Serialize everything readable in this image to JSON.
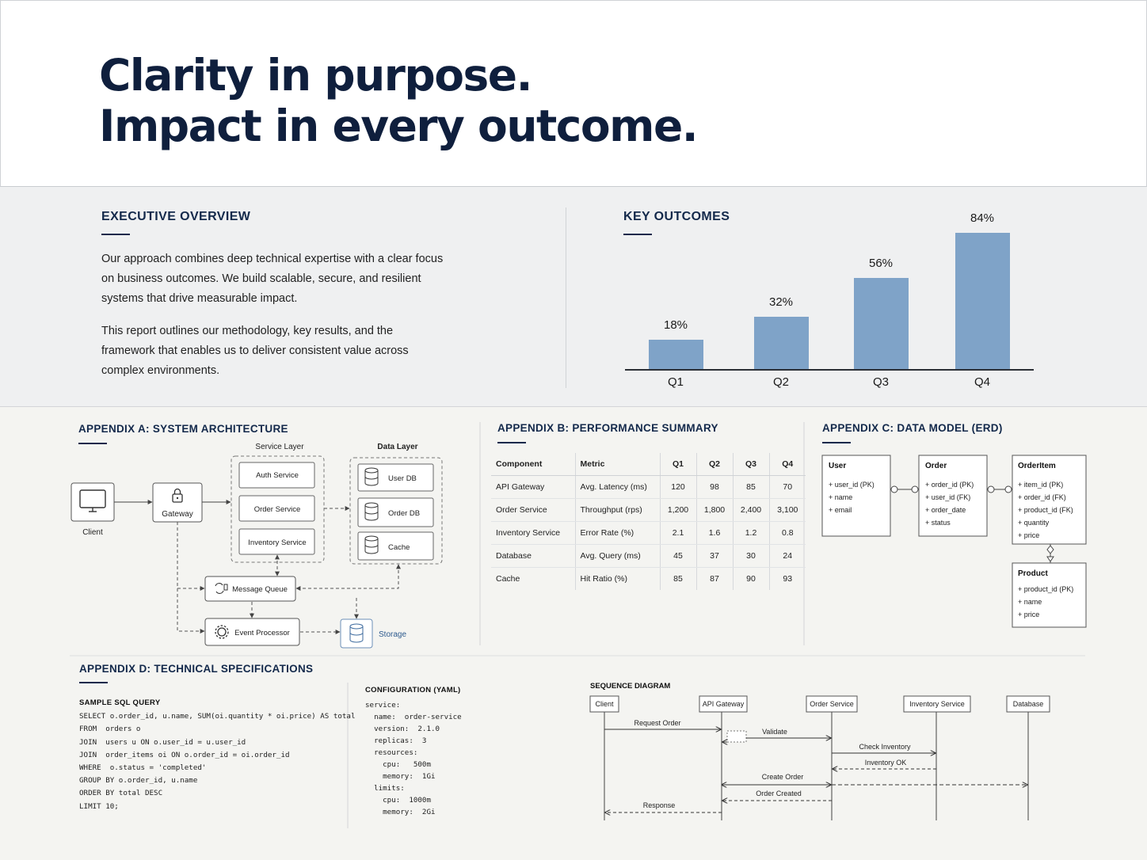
{
  "hero": {
    "line1": "Clarity in purpose.",
    "line2": "Impact in every outcome."
  },
  "overview": {
    "title": "EXECUTIVE OVERVIEW",
    "para1_lines": [
      "Our approach combines deep technical expertise with a clear focus",
      "on business outcomes. We build scalable, secure, and resilient",
      "systems that drive measurable impact."
    ],
    "para2_lines": [
      "This report outlines our methodology, key results, and the",
      "framework that enables us to deliver consistent value across",
      "complex environments."
    ]
  },
  "outcomes": {
    "title": "KEY OUTCOMES"
  },
  "chart_data": {
    "type": "bar",
    "title": "KEY OUTCOMES",
    "categories": [
      "Q1",
      "Q2",
      "Q3",
      "Q4"
    ],
    "values": [
      18,
      32,
      56,
      84
    ],
    "value_labels": [
      "18%",
      "32%",
      "56%",
      "84%"
    ],
    "ylim": [
      0,
      84
    ],
    "grid": false,
    "bar_color": "#7fa3c8"
  },
  "appendix_a": {
    "title": "APPENDIX A: SYSTEM ARCHITECTURE",
    "service_layer": "Service Layer",
    "data_layer": "Data Layer",
    "client": "Client",
    "gateway": "Gateway",
    "services": [
      "Auth Service",
      "Order Service",
      "Inventory Service"
    ],
    "stores": [
      "User DB",
      "Order DB",
      "Cache"
    ],
    "message_queue": "Message Queue",
    "event_processor": "Event Processor",
    "storage": "Storage"
  },
  "appendix_b": {
    "title": "APPENDIX B: PERFORMANCE SUMMARY",
    "headers": [
      "Component",
      "Metric",
      "Q1",
      "Q2",
      "Q3",
      "Q4"
    ],
    "rows": [
      [
        "API Gateway",
        "Avg. Latency (ms)",
        "120",
        "98",
        "85",
        "70"
      ],
      [
        "Order Service",
        "Throughput (rps)",
        "1,200",
        "1,800",
        "2,400",
        "3,100"
      ],
      [
        "Inventory Service",
        "Error Rate (%)",
        "2.1",
        "1.6",
        "1.2",
        "0.8"
      ],
      [
        "Database",
        "Avg. Query (ms)",
        "45",
        "37",
        "30",
        "24"
      ],
      [
        "Cache",
        "Hit Ratio (%)",
        "85",
        "87",
        "90",
        "93"
      ]
    ]
  },
  "appendix_c": {
    "title": "APPENDIX C: DATA MODEL (ERD)",
    "entities": [
      {
        "name": "User",
        "fields": [
          "user_id (PK)",
          "name",
          "email"
        ]
      },
      {
        "name": "Order",
        "fields": [
          "order_id (PK)",
          "user_id (FK)",
          "order_date",
          "status"
        ]
      },
      {
        "name": "OrderItem",
        "fields": [
          "item_id (PK)",
          "order_id (FK)",
          "product_id (FK)",
          "quantity",
          "price"
        ]
      },
      {
        "name": "Product",
        "fields": [
          "product_id (PK)",
          "name",
          "price"
        ]
      }
    ]
  },
  "appendix_d": {
    "title": "APPENDIX D: TECHNICAL SPECIFICATIONS",
    "sql_title": "SAMPLE SQL QUERY",
    "sql_lines": [
      "SELECT o.order_id, u.name, SUM(oi.quantity * oi.price) AS total",
      "FROM  orders o",
      "JOIN  users u ON o.user_id = u.user_id",
      "JOIN  order_items oi ON o.order_id = oi.order_id",
      "WHERE  o.status = 'completed'",
      "GROUP BY o.order_id, u.name",
      "ORDER BY total DESC",
      "LIMIT 10;"
    ],
    "yaml_title": "CONFIGURATION (YAML)",
    "yaml_lines": [
      "service:",
      "  name:  order-service",
      "  version:  2.1.0",
      "  replicas:  3",
      "  resources:",
      "    cpu:   500m",
      "    memory:  1Gi",
      "  limits:",
      "    cpu:  1000m",
      "    memory:  2Gi"
    ],
    "seq_title": "SEQUENCE DIAGRAM",
    "participants": [
      "Client",
      "API Gateway",
      "Order Service",
      "Inventory Service",
      "Database"
    ],
    "messages": [
      "Request Order",
      "Validate",
      "Check Inventory",
      "Inventory OK",
      "Create Order",
      "Order Created",
      "Response"
    ]
  }
}
